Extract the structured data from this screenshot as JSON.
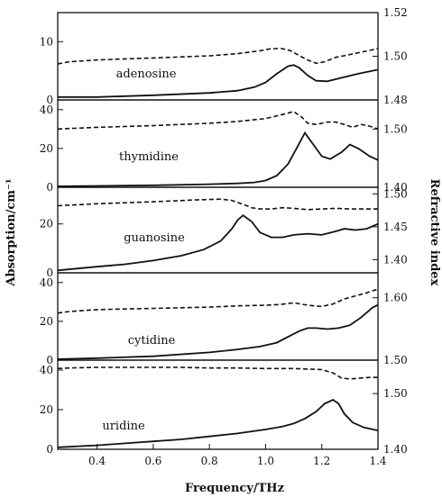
{
  "chart_data": {
    "type": "line",
    "xlabel": "Frequency/THz",
    "ylabel_left": "Absorption/cm⁻¹",
    "ylabel_right": "Refractive index",
    "xlim": [
      0.26,
      1.4
    ],
    "xticks": [
      0.4,
      0.6,
      0.8,
      1.0,
      1.2,
      1.4
    ],
    "xtick_labels": [
      "0.4",
      "0.6",
      "0.8",
      "1.0",
      "1.2",
      "1.4"
    ],
    "grid": false,
    "panels": [
      {
        "label": "adenosine",
        "abs_ylim": [
          0,
          15
        ],
        "abs_ticks": [
          0,
          10
        ],
        "abs_tick_labels": [
          "0",
          "10"
        ],
        "ri_ylim": [
          1.48,
          1.52
        ],
        "ri_ticks": [
          1.48,
          1.5,
          1.52
        ],
        "ri_tick_labels": [
          "1.48",
          "1.50",
          "1.52"
        ],
        "absorption": {
          "x": [
            0.26,
            0.4,
            0.6,
            0.8,
            0.9,
            0.96,
            1.0,
            1.04,
            1.08,
            1.1,
            1.12,
            1.15,
            1.18,
            1.22,
            1.27,
            1.33,
            1.4
          ],
          "y": [
            0.5,
            0.5,
            0.8,
            1.2,
            1.6,
            2.2,
            3.0,
            4.5,
            5.8,
            6.0,
            5.5,
            4.2,
            3.3,
            3.2,
            3.8,
            4.5,
            5.2
          ]
        },
        "refractive_index": {
          "x": [
            0.26,
            0.3,
            0.4,
            0.5,
            0.6,
            0.7,
            0.8,
            0.9,
            0.98,
            1.02,
            1.06,
            1.09,
            1.12,
            1.15,
            1.18,
            1.21,
            1.25,
            1.3,
            1.4
          ],
          "y": [
            1.4965,
            1.4975,
            1.4983,
            1.4988,
            1.4992,
            1.4997,
            1.5002,
            1.5012,
            1.5025,
            1.5035,
            1.5035,
            1.5025,
            1.5003,
            1.4983,
            1.4968,
            1.4975,
            1.4995,
            1.5008,
            1.5035
          ]
        }
      },
      {
        "label": "thymidine",
        "abs_ylim": [
          0,
          45
        ],
        "abs_ticks": [
          0,
          20,
          40
        ],
        "abs_tick_labels": [
          "0",
          "20",
          "40"
        ],
        "ri_ylim": [
          1.4,
          1.55
        ],
        "ri_ticks": [
          1.4,
          1.5
        ],
        "ri_tick_labels": [
          "1.40",
          "1.50"
        ],
        "absorption": {
          "x": [
            0.26,
            0.4,
            0.6,
            0.8,
            0.9,
            0.96,
            1.0,
            1.04,
            1.08,
            1.11,
            1.14,
            1.17,
            1.2,
            1.23,
            1.27,
            1.3,
            1.33,
            1.37,
            1.4
          ],
          "y": [
            0.5,
            0.7,
            1.0,
            1.6,
            2.0,
            2.5,
            3.5,
            6.0,
            12.0,
            20.0,
            28.0,
            22.0,
            16.0,
            14.5,
            18.0,
            22.0,
            20.0,
            16.0,
            14.0
          ]
        },
        "refractive_index": {
          "x": [
            0.26,
            0.4,
            0.6,
            0.8,
            0.9,
            1.0,
            1.06,
            1.1,
            1.13,
            1.15,
            1.18,
            1.22,
            1.25,
            1.28,
            1.31,
            1.34,
            1.37,
            1.4
          ],
          "y": [
            1.5,
            1.503,
            1.506,
            1.51,
            1.513,
            1.518,
            1.525,
            1.53,
            1.52,
            1.51,
            1.508,
            1.512,
            1.512,
            1.508,
            1.503,
            1.508,
            1.505,
            1.5
          ]
        }
      },
      {
        "label": "guanosine",
        "abs_ylim": [
          0,
          35
        ],
        "abs_ticks": [
          0,
          20
        ],
        "abs_tick_labels": [
          "0",
          "20"
        ],
        "ri_ylim": [
          1.38,
          1.51
        ],
        "ri_ticks": [
          1.4,
          1.45,
          1.5
        ],
        "ri_tick_labels": [
          "1.40",
          "1.45",
          "1.50"
        ],
        "absorption": {
          "x": [
            0.26,
            0.4,
            0.5,
            0.6,
            0.7,
            0.78,
            0.84,
            0.88,
            0.9,
            0.92,
            0.95,
            0.98,
            1.02,
            1.06,
            1.1,
            1.15,
            1.2,
            1.25,
            1.28,
            1.32,
            1.36,
            1.4
          ],
          "y": [
            1.0,
            2.5,
            3.5,
            5.0,
            7.0,
            9.5,
            13.0,
            18.0,
            21.5,
            23.5,
            21.0,
            16.5,
            14.5,
            14.5,
            15.5,
            16.0,
            15.5,
            17.0,
            18.0,
            17.5,
            18.0,
            20.0
          ]
        },
        "refractive_index": {
          "x": [
            0.26,
            0.4,
            0.6,
            0.76,
            0.84,
            0.88,
            0.92,
            0.95,
            0.98,
            1.02,
            1.06,
            1.1,
            1.15,
            1.2,
            1.25,
            1.3,
            1.35,
            1.4
          ],
          "y": [
            1.482,
            1.485,
            1.488,
            1.491,
            1.492,
            1.49,
            1.484,
            1.479,
            1.477,
            1.477,
            1.479,
            1.478,
            1.476,
            1.477,
            1.478,
            1.477,
            1.477,
            1.477
          ]
        }
      },
      {
        "label": "cytidine",
        "abs_ylim": [
          0,
          45
        ],
        "abs_ticks": [
          0,
          20,
          40
        ],
        "abs_tick_labels": [
          "0",
          "20",
          "40"
        ],
        "ri_ylim": [
          1.5,
          1.64
        ],
        "ri_ticks": [
          1.5,
          1.6
        ],
        "ri_tick_labels": [
          "1.50",
          "1.60"
        ],
        "absorption": {
          "x": [
            0.26,
            0.4,
            0.6,
            0.8,
            0.9,
            0.98,
            1.04,
            1.08,
            1.12,
            1.15,
            1.18,
            1.22,
            1.26,
            1.3,
            1.34,
            1.38,
            1.4
          ],
          "y": [
            0.5,
            1.0,
            2.0,
            4.0,
            5.5,
            7.0,
            9.0,
            12.0,
            15.0,
            16.5,
            16.5,
            16.0,
            16.5,
            18.0,
            22.0,
            27.0,
            28.5
          ]
        },
        "refractive_index": {
          "x": [
            0.26,
            0.3,
            0.4,
            0.5,
            0.6,
            0.7,
            0.8,
            0.9,
            1.0,
            1.05,
            1.1,
            1.15,
            1.2,
            1.24,
            1.28,
            1.32,
            1.36,
            1.4
          ],
          "y": [
            1.5755,
            1.578,
            1.581,
            1.582,
            1.583,
            1.584,
            1.585,
            1.587,
            1.588,
            1.589,
            1.592,
            1.588,
            1.586,
            1.59,
            1.598,
            1.603,
            1.608,
            1.614
          ]
        }
      },
      {
        "label": "uridine",
        "abs_ylim": [
          0,
          45
        ],
        "abs_ticks": [
          0,
          20,
          40
        ],
        "abs_tick_labels": [
          "0",
          "20",
          "40"
        ],
        "ri_ylim": [
          1.4,
          1.56
        ],
        "ri_ticks": [
          1.4,
          1.5
        ],
        "ri_tick_labels": [
          "1.40",
          "1.50"
        ],
        "absorption": {
          "x": [
            0.26,
            0.4,
            0.5,
            0.6,
            0.7,
            0.8,
            0.9,
            1.0,
            1.06,
            1.1,
            1.14,
            1.18,
            1.21,
            1.24,
            1.26,
            1.28,
            1.31,
            1.35,
            1.4
          ],
          "y": [
            1.0,
            2.0,
            3.0,
            4.0,
            5.0,
            6.5,
            8.0,
            10.0,
            11.5,
            13.0,
            15.5,
            19.0,
            23.0,
            25.0,
            23.0,
            18.0,
            13.5,
            11.0,
            9.5
          ]
        },
        "refractive_index": {
          "x": [
            0.26,
            0.3,
            0.4,
            0.5,
            0.6,
            0.7,
            0.8,
            0.9,
            1.0,
            1.1,
            1.15,
            1.2,
            1.24,
            1.27,
            1.3,
            1.34,
            1.37,
            1.4
          ],
          "y": [
            1.545,
            1.546,
            1.547,
            1.547,
            1.547,
            1.547,
            1.546,
            1.546,
            1.545,
            1.545,
            1.544,
            1.543,
            1.537,
            1.528,
            1.526,
            1.528,
            1.529,
            1.529
          ]
        }
      }
    ]
  }
}
